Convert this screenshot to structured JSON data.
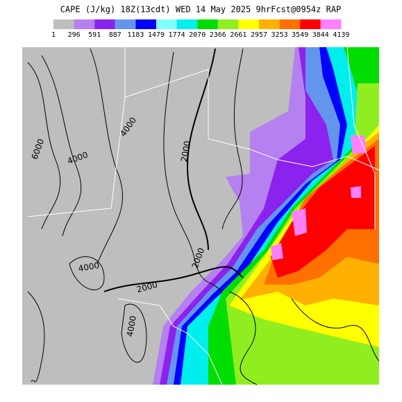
{
  "header": {
    "title": "CAPE (J/kg) 18Z(13cdt) WED 14 May 2025 9hrFcst@0954z RAP"
  },
  "legend": {
    "labels": [
      "1",
      "296",
      "591",
      "887",
      "1183",
      "1479",
      "1774",
      "2070",
      "2366",
      "2661",
      "2957",
      "3253",
      "3549",
      "3844",
      "4139"
    ],
    "colors": [
      "#bebebe",
      "#b580f0",
      "#8c22ee",
      "#6495ed",
      "#0000ff",
      "#80ffff",
      "#00eeee",
      "#00dd00",
      "#90ee20",
      "#ffff00",
      "#ffb000",
      "#ff7000",
      "#ff0000",
      "#ff80ff"
    ]
  },
  "contours": [
    "6000",
    "4000",
    "4000",
    "2000",
    "2000",
    "4000",
    "2000",
    "4000"
  ]
}
